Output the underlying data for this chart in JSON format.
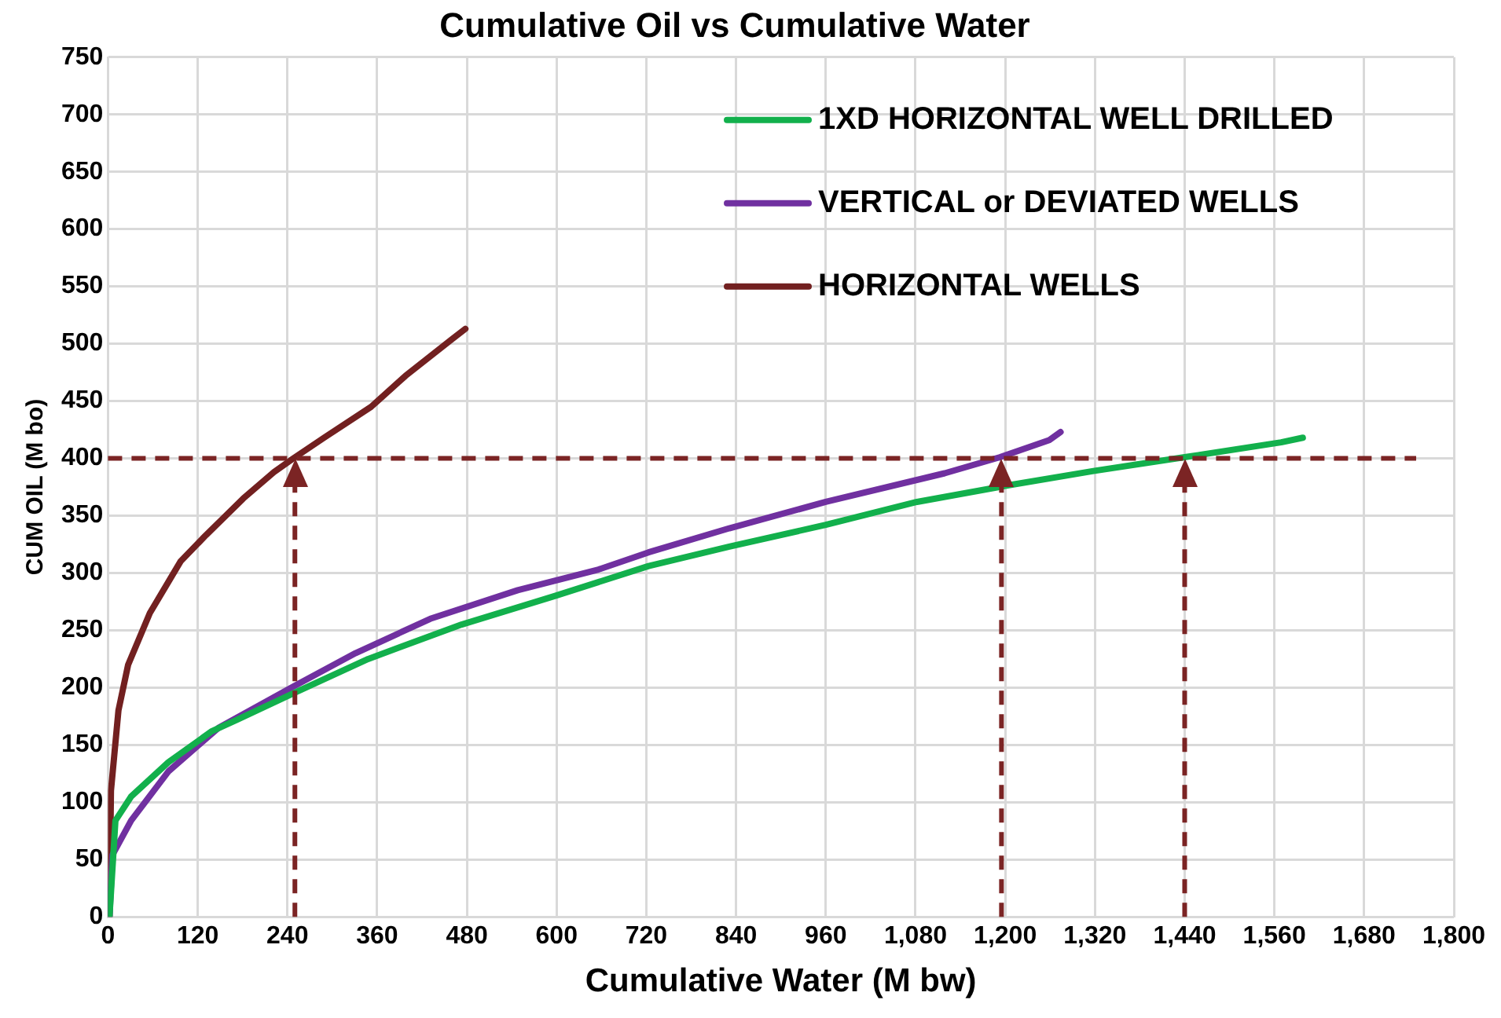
{
  "chart_data": {
    "type": "line",
    "title": "Cumulative Oil vs Cumulative Water",
    "xlabel": "Cumulative Water (M bw)",
    "ylabel": "CUM OIL (M bo)",
    "xlim": [
      0,
      1800
    ],
    "xticks": [
      0,
      120,
      240,
      360,
      480,
      600,
      720,
      840,
      960,
      {
        "value": 1080,
        "label": "1,080"
      },
      {
        "value": 1200,
        "label": "1,200"
      },
      {
        "value": 1320,
        "label": "1,320"
      },
      {
        "value": 1440,
        "label": "1,440"
      },
      {
        "value": 1560,
        "label": "1,560"
      },
      {
        "value": 1680,
        "label": "1,680"
      },
      {
        "value": 1800,
        "label": "1,800"
      }
    ],
    "ylim": [
      0,
      750
    ],
    "yticks": [
      0,
      50,
      100,
      150,
      200,
      250,
      300,
      350,
      400,
      450,
      500,
      550,
      600,
      650,
      700,
      750
    ],
    "grid": true,
    "legend": "top right",
    "marker": "none",
    "line_style": "solid",
    "series": [
      {
        "name": "1XD HORIZONTAL WELL DRILLED",
        "color": "#12b04c",
        "x": [
          2,
          10,
          31,
          81,
          139,
          173,
          248,
          348,
          473,
          598,
          723,
          831,
          960,
          1082,
          1200,
          1318,
          1440,
          1569,
          1598
        ],
        "values": [
          0,
          84,
          105,
          135,
          162,
          172,
          195,
          225,
          255,
          280,
          306,
          323,
          342,
          362,
          376,
          389,
          401,
          414,
          418
        ]
      },
      {
        "name": "VERTICAL or DEVIATED WELLS",
        "color": "#7030a0",
        "x": [
          2,
          6,
          31,
          81,
          148,
          248,
          331,
          431,
          548,
          656,
          723,
          831,
          960,
          1119,
          1193,
          1259,
          1274
        ],
        "values": [
          0,
          54,
          84,
          127,
          165,
          201,
          230,
          260,
          285,
          303,
          318,
          339,
          362,
          387,
          401,
          416,
          423
        ]
      },
      {
        "name": "HORIZONTAL WELLS",
        "color": "#722020",
        "x": [
          2,
          4,
          14,
          27,
          56,
          97,
          131,
          181,
          222,
          248,
          289,
          352,
          398,
          431,
          460,
          478
        ],
        "values": [
          0,
          110,
          180,
          220,
          265,
          310,
          333,
          365,
          388,
          400,
          418,
          445,
          472,
          489,
          504,
          513
        ]
      }
    ],
    "ref_lines": [
      {
        "axis": "y",
        "value": 400,
        "color": "#7b2424",
        "line_style": "dashed"
      },
      {
        "axis": "x",
        "value": 250,
        "color": "#7b2424",
        "line_style": "dashed"
      },
      {
        "axis": "x",
        "value": 1195,
        "color": "#7b2424",
        "line_style": "dashed"
      },
      {
        "axis": "x",
        "value": 1440,
        "color": "#7b2424",
        "line_style": "dashed"
      }
    ]
  }
}
